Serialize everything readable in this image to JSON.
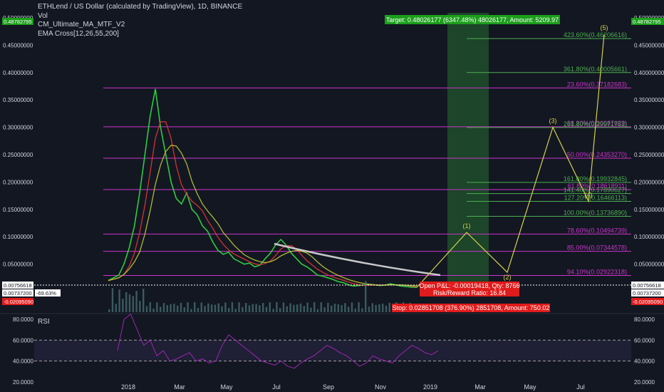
{
  "legend": {
    "title": "ETHLend / US Dollar (calculated by TradingView), 1D, BINANCE",
    "vol": "Vol",
    "ma": "CM_Ultimate_MA_MTF_V2",
    "ema": "EMA Cross[12,26,55,200]"
  },
  "rsi_label": "RSI",
  "colors": {
    "background": "#131722",
    "fib_magenta": "#cc33cc",
    "fib_green": "#4caf50",
    "wave_yellow": "#d4d445",
    "target_green": "#1b9e1b",
    "stop_red": "#e01b1b"
  },
  "badges": {
    "left": [
      {
        "text": "0.48782795",
        "bg": "#1b9e1b"
      },
      {
        "text": "0.00756618",
        "bg": "#ffffff"
      },
      {
        "text": "0.00737200",
        "bg": "#ffffff"
      },
      {
        "text": "-69.63%",
        "bg": "#ffffff"
      },
      {
        "text": "-0.02095090",
        "bg": "#e01b1b"
      }
    ],
    "right": [
      {
        "text": "0.48782795",
        "bg": "#1b9e1b"
      },
      {
        "text": "0.00756618",
        "bg": "#ffffff"
      },
      {
        "text": "0.00737200",
        "bg": "#ffffff"
      },
      {
        "text": "-0.02095090",
        "bg": "#e01b1b"
      }
    ]
  },
  "boxes": {
    "target": "Target: 0.48026177 (6347.48%) 48026177, Amount: 5209.97",
    "pnl_line1": "Open P&L: -0.00019418, Qty: 8766",
    "pnl_line2": "Risk/Reward Ratio: 16.84",
    "stop": "Stop: 0.02851708 (376.90%) 2851708, Amount: 750.02"
  },
  "chart_data": {
    "type": "line",
    "price_axis": {
      "ticks": [
        "0.50000000",
        "0.45000000",
        "0.40000000",
        "0.35000000",
        "0.30000000",
        "0.25000000",
        "0.20000000",
        "0.15000000",
        "0.10000000",
        "0.05000000"
      ],
      "tick_values": [
        0.5,
        0.45,
        0.4,
        0.35,
        0.3,
        0.25,
        0.2,
        0.15,
        0.1,
        0.05
      ]
    },
    "time_axis": {
      "labels": [
        "2018",
        "Mar",
        "May",
        "Jul",
        "Sep",
        "Nov",
        "2019",
        "Mar",
        "May",
        "Jul"
      ]
    },
    "rsi_axis": {
      "ticks": [
        "80.0000",
        "60.0000",
        "40.0000",
        "20.0000"
      ],
      "tick_values": [
        80,
        60,
        40,
        20
      ],
      "band": [
        40,
        60
      ]
    },
    "price_series": {
      "name": "",
      "values": [
        0.02,
        0.025,
        0.03,
        0.05,
        0.08,
        0.12,
        0.18,
        0.25,
        0.32,
        0.37,
        0.3,
        0.25,
        0.2,
        0.17,
        0.16,
        0.18,
        0.15,
        0.14,
        0.12,
        0.11,
        0.09,
        0.075,
        0.068,
        0.072,
        0.06,
        0.055,
        0.05,
        0.052,
        0.045,
        0.048,
        0.06,
        0.07,
        0.085,
        0.095,
        0.085,
        0.07,
        0.06,
        0.05,
        0.045,
        0.038,
        0.03,
        0.028,
        0.025,
        0.022,
        0.018,
        0.016,
        0.012,
        0.01,
        0.011,
        0.012,
        0.013,
        0.012,
        0.011,
        0.012,
        0.014,
        0.012,
        0.01,
        0.009,
        0.008,
        0.0075
      ]
    },
    "wave_points": [
      {
        "label": "",
        "value": 0.0075
      },
      {
        "label": "(1)",
        "value": 0.108
      },
      {
        "label": "(2)",
        "value": 0.035
      },
      {
        "label": "(3)",
        "value": 0.3
      },
      {
        "label": "(4)",
        "value": 0.165
      },
      {
        "label": "(5)",
        "value": 0.47
      }
    ],
    "fib_levels": [
      {
        "label": "423.60%(0.46206616)",
        "value": 0.46206616,
        "color": "green"
      },
      {
        "label": "361.80%(0.40005661)",
        "value": 0.40005661,
        "color": "green"
      },
      {
        "label": "23.60%(0.37182683)",
        "value": 0.37182683,
        "color": "magenta"
      },
      {
        "label": "38.20%(0.30087629)",
        "value": 0.30087629,
        "color": "magenta"
      },
      {
        "label": "261.80%(0.29971753)",
        "value": 0.29971753,
        "color": "green"
      },
      {
        "label": "50.00%(0.24353270)",
        "value": 0.2435327,
        "color": "magenta"
      },
      {
        "label": "161.80%(0.19932845)",
        "value": 0.19932845,
        "color": "green"
      },
      {
        "label": "61.80%(0.18618911)",
        "value": 0.18618911,
        "color": "magenta"
      },
      {
        "label": "141.40%(0.17890627)",
        "value": 0.17890627,
        "color": "green"
      },
      {
        "label": "127.20%(0.16466113)",
        "value": 0.16466113,
        "color": "green"
      },
      {
        "label": "100.00%(0.13736890)",
        "value": 0.1373689,
        "color": "green"
      },
      {
        "label": "78.60%(0.10494739)",
        "value": 0.10494739,
        "color": "magenta"
      },
      {
        "label": "85.00%(0.07344578)",
        "value": 0.07344578,
        "color": "magenta"
      },
      {
        "label": "94.10%(0.02922318)",
        "value": 0.02922318,
        "color": "magenta"
      }
    ],
    "rsi_series": {
      "name": "",
      "values": [
        50,
        80,
        85,
        70,
        55,
        60,
        45,
        50,
        40,
        42,
        45,
        48,
        40,
        42,
        38,
        40,
        55,
        65,
        60,
        55,
        50,
        45,
        40,
        38,
        36,
        40,
        35,
        33,
        38,
        42,
        45,
        50,
        55,
        52,
        48,
        45,
        40,
        35,
        38,
        45,
        42,
        40,
        38,
        45,
        50,
        55,
        52,
        48,
        46,
        50
      ]
    }
  }
}
